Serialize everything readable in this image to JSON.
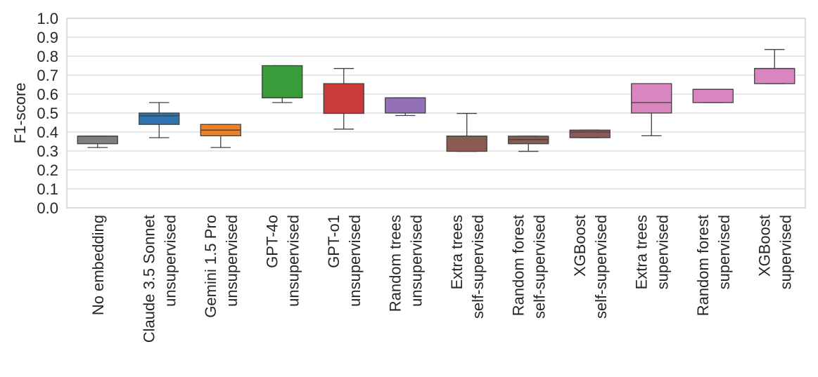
{
  "chart_data": {
    "type": "box",
    "ylabel": "F1-score",
    "xlabel": "",
    "ylim": [
      0.0,
      1.0
    ],
    "yticks": [
      "0.0",
      "0.1",
      "0.2",
      "0.3",
      "0.4",
      "0.5",
      "0.6",
      "0.7",
      "0.8",
      "0.9",
      "1.0"
    ],
    "grid": true,
    "categories": [
      {
        "lines": [
          "No embedding"
        ],
        "color": "#7f7f7f",
        "whislo": 0.318,
        "q1": 0.338,
        "median": 0.378,
        "q3": 0.378,
        "whishi": 0.378
      },
      {
        "lines": [
          "Claude 3.5 Sonnet",
          "unsupervised"
        ],
        "color": "#2f74b0",
        "whislo": 0.37,
        "q1": 0.44,
        "median": 0.485,
        "q3": 0.5,
        "whishi": 0.555
      },
      {
        "lines": [
          "Gemini 1.5 Pro",
          "unsupervised"
        ],
        "color": "#e8822f",
        "whislo": 0.318,
        "q1": 0.38,
        "median": 0.41,
        "q3": 0.44,
        "whishi": 0.44
      },
      {
        "lines": [
          "GPT-4o",
          "unsupervised"
        ],
        "color": "#3a9b3a",
        "whislo": 0.555,
        "q1": 0.58,
        "median": 0.58,
        "q3": 0.75,
        "whishi": 0.75
      },
      {
        "lines": [
          "GPT-o1",
          "unsupervised"
        ],
        "color": "#c93a3a",
        "whislo": 0.415,
        "q1": 0.498,
        "median": 0.655,
        "q3": 0.655,
        "whishi": 0.735
      },
      {
        "lines": [
          "Random trees",
          "unsupervised"
        ],
        "color": "#9370b8",
        "whislo": 0.487,
        "q1": 0.5,
        "median": 0.58,
        "q3": 0.58,
        "whishi": 0.58
      },
      {
        "lines": [
          "Extra trees",
          "self-supervised"
        ],
        "color": "#8b5a52",
        "whislo": 0.298,
        "q1": 0.298,
        "median": 0.378,
        "q3": 0.378,
        "whishi": 0.498
      },
      {
        "lines": [
          "Random forest",
          "self-supervised"
        ],
        "color": "#8b5a52",
        "whislo": 0.298,
        "q1": 0.338,
        "median": 0.36,
        "q3": 0.378,
        "whishi": 0.378
      },
      {
        "lines": [
          "XGBoost",
          "self-supervised"
        ],
        "color": "#8b5a52",
        "whislo": 0.37,
        "q1": 0.37,
        "median": 0.4,
        "q3": 0.41,
        "whishi": 0.41
      },
      {
        "lines": [
          "Extra trees",
          "supervised"
        ],
        "color": "#d986c0",
        "whislo": 0.38,
        "q1": 0.5,
        "median": 0.555,
        "q3": 0.655,
        "whishi": 0.655
      },
      {
        "lines": [
          "Random forest",
          "supervised"
        ],
        "color": "#d986c0",
        "whislo": 0.555,
        "q1": 0.555,
        "median": 0.625,
        "q3": 0.625,
        "whishi": 0.625
      },
      {
        "lines": [
          "XGBoost",
          "supervised"
        ],
        "color": "#d986c0",
        "whislo": 0.655,
        "q1": 0.655,
        "median": 0.735,
        "q3": 0.735,
        "whishi": 0.835
      }
    ]
  }
}
